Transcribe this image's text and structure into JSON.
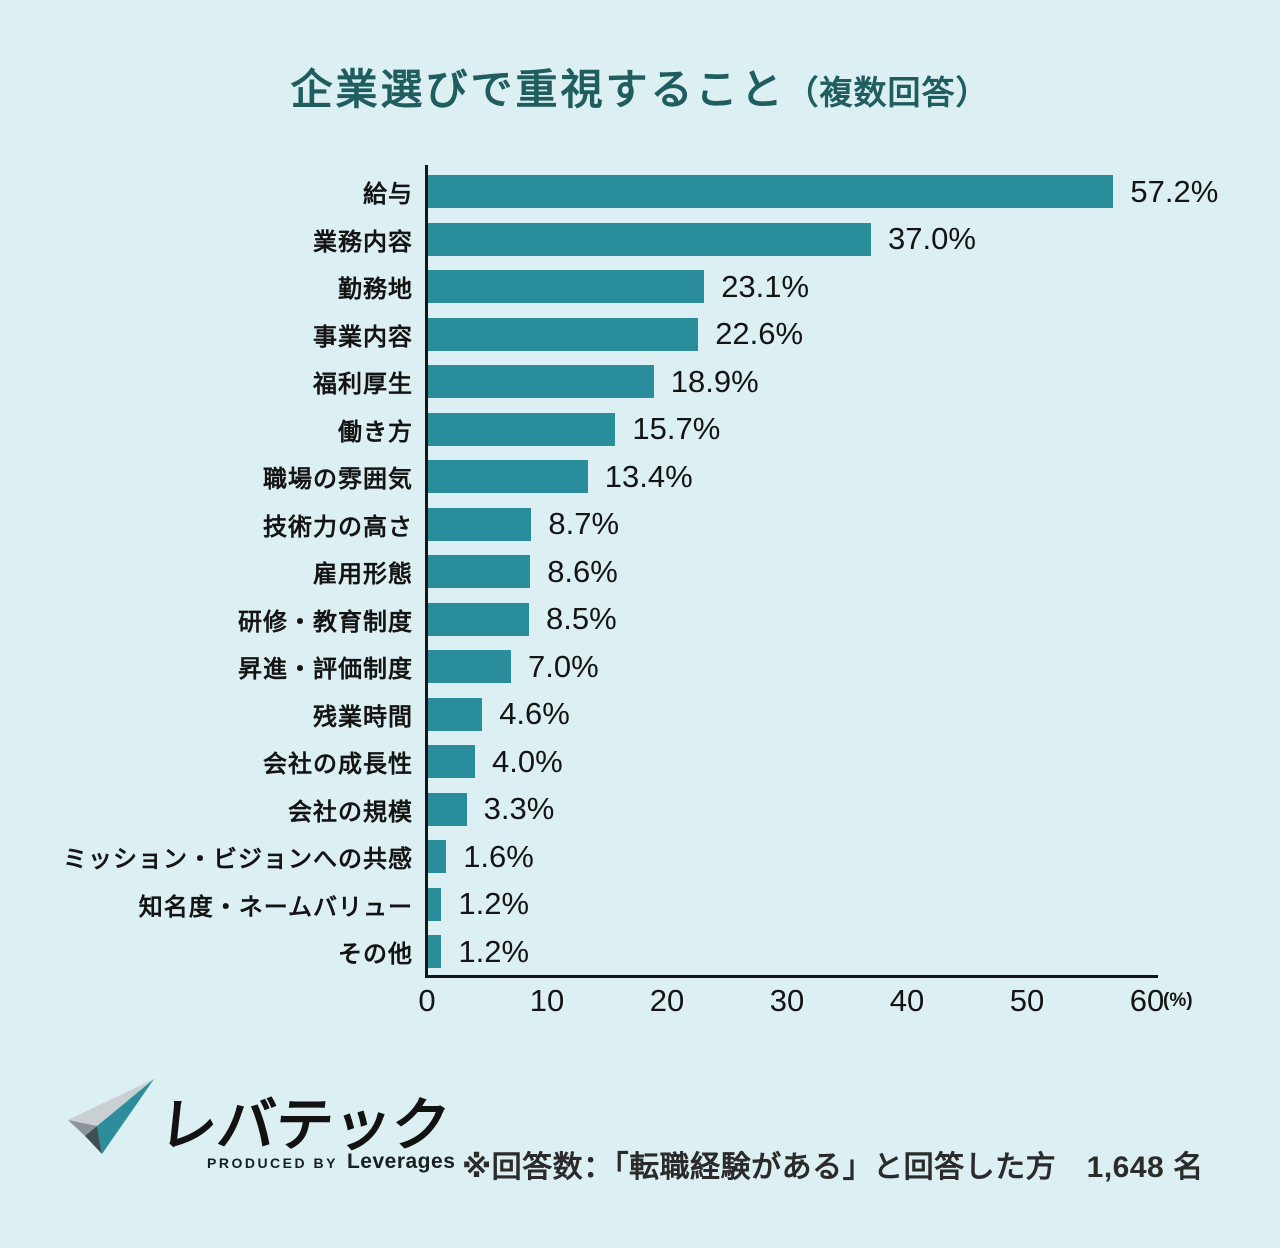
{
  "title": {
    "main": "企業選びで重視すること",
    "suffix": "（複数回答）"
  },
  "chart_data": {
    "type": "bar",
    "orientation": "horizontal",
    "categories": [
      "給与",
      "業務内容",
      "勤務地",
      "事業内容",
      "福利厚生",
      "働き方",
      "職場の雰囲気",
      "技術力の高さ",
      "雇用形態",
      "研修・教育制度",
      "昇進・評価制度",
      "残業時間",
      "会社の成長性",
      "会社の規模",
      "ミッション・ビジョンへの共感",
      "知名度・ネームバリュー",
      "その他"
    ],
    "values": [
      57.2,
      37.0,
      23.1,
      22.6,
      18.9,
      15.7,
      13.4,
      8.7,
      8.6,
      8.5,
      7.0,
      4.6,
      4.0,
      3.3,
      1.6,
      1.2,
      1.2
    ],
    "value_labels": [
      "57.2%",
      "37.0%",
      "23.1%",
      "22.6%",
      "18.9%",
      "15.7%",
      "13.4%",
      "8.7%",
      "8.6%",
      "8.5%",
      "7.0%",
      "4.6%",
      "4.0%",
      "3.3%",
      "1.6%",
      "1.2%",
      "1.2%"
    ],
    "xticks": [
      0,
      10,
      20,
      30,
      40,
      50,
      60
    ],
    "xlim": [
      0,
      60
    ],
    "xlabel": "(%)",
    "grid": false,
    "bar_color": "#2A8D9B",
    "background_color": "#DCEFF3",
    "title_color": "#1F5D5E"
  },
  "footer": {
    "logo": {
      "brand": "レバテック",
      "byline_prefix": "PRODUCED BY",
      "byline_company": "Leverages"
    },
    "note": "※回答数：「転職経験がある」と回答した方　1,648 名"
  }
}
